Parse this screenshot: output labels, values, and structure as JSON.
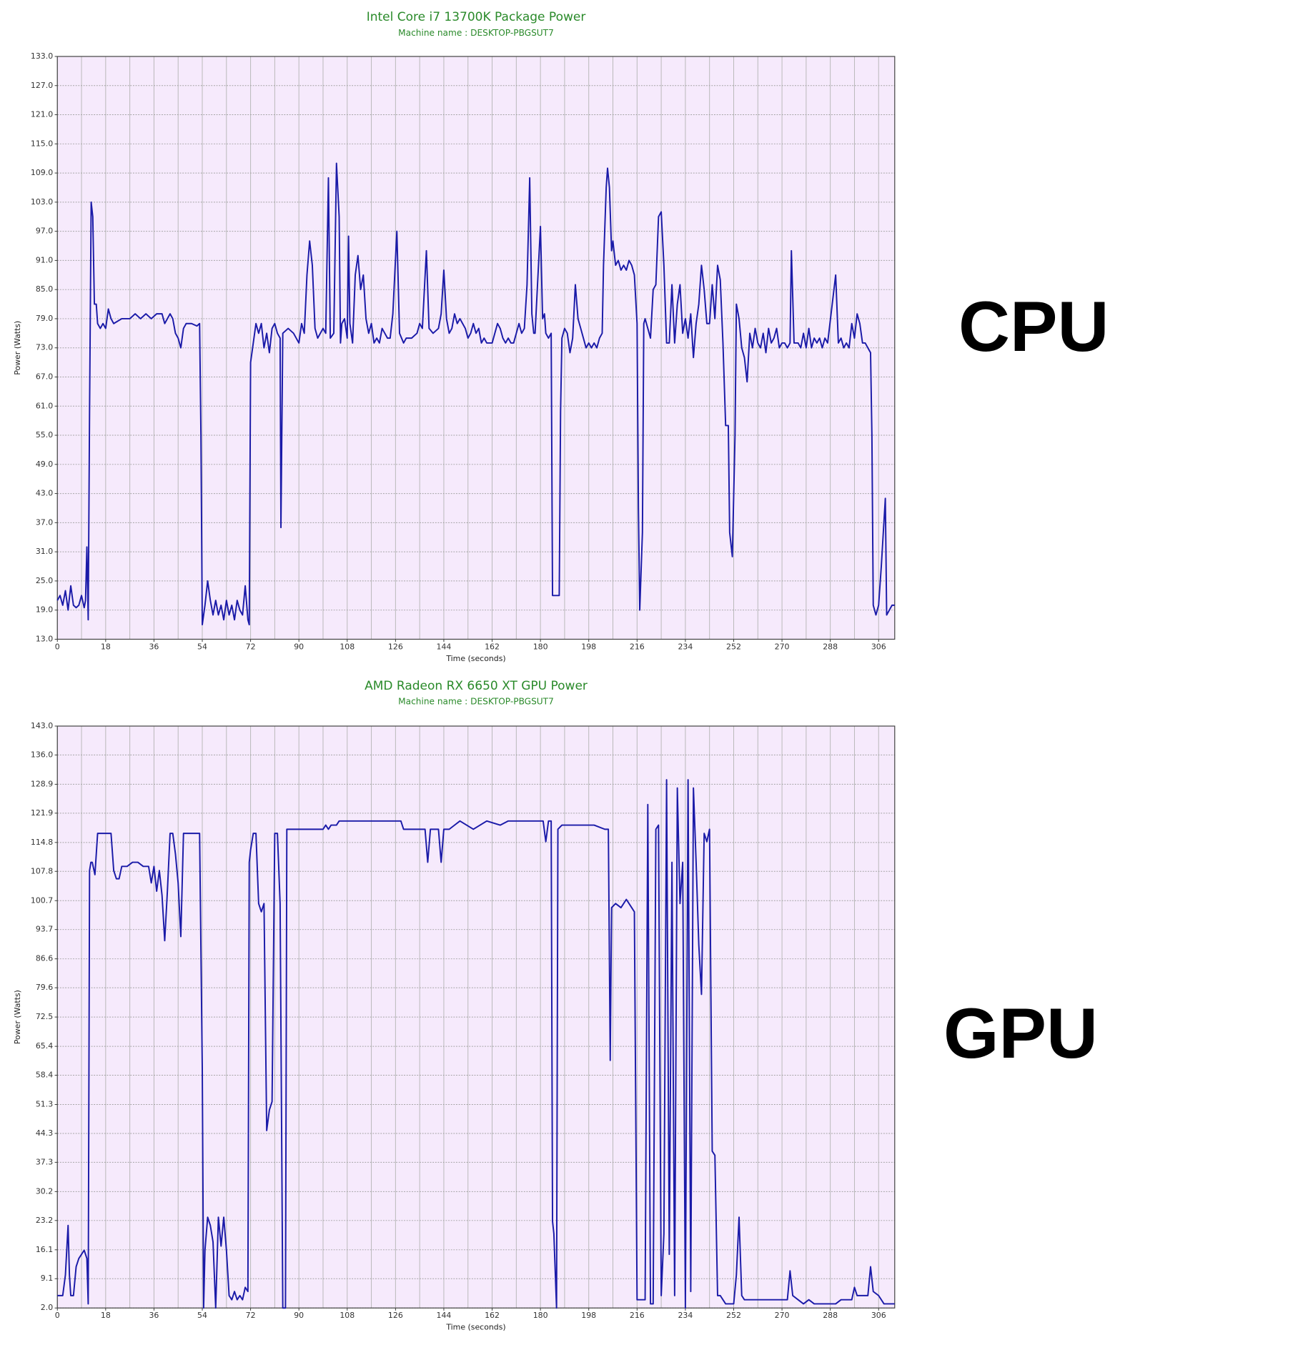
{
  "chart_data": [
    {
      "type": "line",
      "title": "Intel Core i7 13700K Package Power",
      "subtitle": "Machine name : DESKTOP-PBGSUT7",
      "x_label": "Time (seconds)",
      "y_label": "Power (Watts)",
      "annotation": "CPU",
      "color": "#1a1aa8",
      "grid": true,
      "xlim": [
        0,
        312
      ],
      "xticks": [
        0,
        18,
        36,
        54,
        72,
        90,
        108,
        126,
        144,
        162,
        180,
        198,
        216,
        234,
        252,
        270,
        288,
        306
      ],
      "ylim": [
        13,
        133
      ],
      "yticks": [
        {
          "value": 13,
          "label": "13.0"
        },
        {
          "value": 19,
          "label": "19.0"
        },
        {
          "value": 25,
          "label": "25.0"
        },
        {
          "value": 31,
          "label": "31.0"
        },
        {
          "value": 37,
          "label": "37.0"
        },
        {
          "value": 43,
          "label": "43.0"
        },
        {
          "value": 49,
          "label": "49.0"
        },
        {
          "value": 55,
          "label": "55.0"
        },
        {
          "value": 61,
          "label": "61.0"
        },
        {
          "value": 67,
          "label": "67.0"
        },
        {
          "value": 73,
          "label": "73.0"
        },
        {
          "value": 79,
          "label": "79.0"
        },
        {
          "value": 85,
          "label": "85.0"
        },
        {
          "value": 91,
          "label": "91.0"
        },
        {
          "value": 97,
          "label": "97.0"
        },
        {
          "value": 103,
          "label": "103.0"
        },
        {
          "value": 109,
          "label": "109.0"
        },
        {
          "value": 115,
          "label": "115.0"
        },
        {
          "value": 121,
          "label": "121.0"
        },
        {
          "value": 127,
          "label": "127.0"
        },
        {
          "value": 133,
          "label": "133.0"
        }
      ],
      "x": [
        0,
        1,
        2,
        3,
        4,
        5,
        6,
        7,
        8,
        9,
        10,
        10.5,
        11,
        11.5,
        12,
        12.6,
        13.2,
        13.8,
        14.5,
        15,
        16,
        17,
        18,
        19,
        20,
        21,
        24,
        27,
        29,
        31,
        33,
        35,
        37,
        39,
        40,
        42,
        43,
        44,
        45,
        46,
        47,
        48,
        50,
        52,
        53,
        53.5,
        54,
        55,
        56,
        57,
        58,
        59,
        60,
        61,
        62,
        63,
        64,
        65,
        66,
        67,
        68,
        69,
        70,
        71,
        71.5,
        72,
        73,
        74,
        75,
        76,
        77,
        78,
        79,
        80,
        81,
        82,
        83,
        83.3,
        84,
        86,
        88,
        90,
        91,
        92,
        93,
        94,
        95,
        96,
        97,
        98,
        99,
        100,
        101,
        101.7,
        103,
        104,
        105,
        105.5,
        106,
        107,
        108,
        108.5,
        109,
        110,
        111,
        112,
        113,
        114,
        115,
        116,
        117,
        118,
        119,
        120,
        121,
        122,
        123,
        124,
        125,
        126.5,
        127.5,
        129,
        130,
        132,
        134,
        135,
        136,
        137.5,
        138.5,
        140,
        142,
        143,
        144,
        145,
        146,
        147,
        148,
        149,
        150,
        151,
        152,
        153,
        154,
        155,
        156,
        157,
        158,
        159,
        160,
        162,
        163,
        164,
        165,
        166,
        167,
        168,
        169,
        170,
        171,
        172,
        173,
        174,
        175,
        176,
        176.8,
        177.5,
        178,
        180,
        180.8,
        181.5,
        182,
        183,
        184,
        184.5,
        186,
        187,
        187.5,
        188,
        189,
        190,
        191,
        192,
        193,
        194,
        195,
        196,
        197,
        198,
        199,
        200,
        201,
        202,
        203,
        203.5,
        204.5,
        205,
        205.7,
        206.5,
        207,
        208,
        209,
        210,
        211,
        212,
        213,
        214,
        215,
        216,
        216.5,
        217,
        218,
        218.5,
        219,
        220,
        221,
        222,
        223,
        224,
        225,
        226,
        227,
        228,
        229,
        230,
        231,
        232,
        233,
        234,
        235,
        236,
        237,
        238,
        239,
        240,
        241,
        242,
        243,
        244,
        245,
        246,
        247,
        248,
        249,
        250,
        250.5,
        251.5,
        252.5,
        253,
        254,
        255,
        256,
        257,
        258,
        259,
        260,
        261,
        262,
        263,
        264,
        265,
        266,
        267,
        268,
        269,
        270,
        271,
        272,
        273,
        273.5,
        274.5,
        276,
        277,
        278,
        279,
        280,
        281,
        282,
        283,
        284,
        285,
        286,
        287,
        290,
        291,
        292,
        293,
        294,
        295,
        296,
        297,
        298,
        299,
        300,
        301,
        302,
        303,
        303.5,
        304,
        305,
        306,
        307,
        308.5,
        309,
        310,
        311,
        312
      ],
      "values": [
        21,
        22,
        20,
        23,
        19,
        24,
        20,
        19.5,
        20,
        22,
        19.5,
        21,
        32,
        17,
        60,
        103,
        100,
        82,
        82,
        78,
        77,
        78,
        77,
        81,
        79,
        78,
        79,
        79,
        80,
        79,
        80,
        79,
        80,
        80,
        78,
        80,
        79,
        76,
        75,
        73,
        77,
        78,
        78,
        77.5,
        78,
        55,
        16,
        20,
        25,
        21,
        18,
        21,
        18,
        20,
        17,
        21,
        18,
        20,
        17,
        21,
        19,
        18,
        24,
        17,
        16,
        70,
        74,
        78,
        76,
        78,
        73,
        76,
        72,
        77,
        78,
        76,
        75,
        36,
        76,
        77,
        76,
        74,
        78,
        76,
        88,
        95,
        90,
        77,
        75,
        76,
        77,
        76,
        108,
        75,
        76,
        111,
        100,
        74,
        78,
        79,
        75,
        96,
        78,
        74,
        88,
        92,
        85,
        88,
        79,
        76,
        78,
        74,
        75,
        74,
        77,
        76,
        75,
        75,
        80,
        97,
        76,
        74,
        75,
        75,
        76,
        78,
        77,
        93,
        77,
        76,
        77,
        80,
        89,
        79,
        76,
        77,
        80,
        78,
        79,
        78,
        77,
        75,
        76,
        78,
        76,
        77,
        74,
        75,
        74,
        74,
        76,
        78,
        77,
        75,
        74,
        75,
        74,
        74,
        76,
        78,
        76,
        77,
        86,
        108,
        80,
        76,
        76,
        98,
        79,
        80,
        76,
        75,
        76,
        22,
        22,
        22,
        60,
        75,
        77,
        76,
        72,
        75,
        86,
        79,
        77,
        75,
        73,
        74,
        73,
        74,
        73,
        75,
        76,
        90,
        106,
        110,
        106,
        93,
        95,
        90,
        91,
        89,
        90,
        89,
        91,
        90,
        88,
        78,
        40,
        19,
        35,
        78,
        79,
        77,
        75,
        85,
        86,
        100,
        101,
        90,
        74,
        74,
        86,
        74,
        82,
        86,
        76,
        79,
        75,
        80,
        71,
        78,
        82,
        90,
        85,
        78,
        78,
        86,
        79,
        90,
        87,
        74,
        57,
        57,
        35,
        30,
        55,
        82,
        79,
        73,
        71,
        66,
        76,
        73,
        77,
        74,
        73,
        76,
        72,
        77,
        74,
        75,
        77,
        73,
        74,
        74,
        73,
        74,
        93,
        74,
        74,
        73,
        76,
        73,
        77,
        73,
        75,
        74,
        75,
        73,
        75,
        74,
        88,
        74,
        75,
        73,
        74,
        73,
        78,
        75,
        80,
        78,
        74,
        74,
        73,
        72,
        55,
        20,
        18,
        20,
        28,
        42,
        18,
        19,
        20,
        20
      ]
    },
    {
      "type": "line",
      "title": "AMD Radeon RX 6650 XT GPU Power",
      "subtitle": "Machine name : DESKTOP-PBGSUT7",
      "x_label": "Time (seconds)",
      "y_label": "Power (Watts)",
      "annotation": "GPU",
      "color": "#1a1aa8",
      "grid": true,
      "xlim": [
        0,
        312
      ],
      "xticks": [
        0,
        18,
        36,
        54,
        72,
        90,
        108,
        126,
        144,
        162,
        180,
        198,
        216,
        234,
        252,
        270,
        288,
        306
      ],
      "ylim": [
        2,
        143
      ],
      "yticks": [
        {
          "value": 2,
          "label": "2.0"
        },
        9.1,
        16.1,
        23.2,
        30.2,
        37.3,
        44.3,
        51.3,
        58.4,
        65.4,
        72.5,
        79.6,
        86.6,
        93.7,
        100.7,
        107.8,
        114.8,
        121.9,
        128.9,
        {
          "value": 136,
          "label": "136.0"
        },
        {
          "value": 143,
          "label": "143.0"
        }
      ],
      "x": [
        0,
        1,
        2,
        3,
        4,
        4.5,
        5,
        6,
        7,
        8,
        9,
        10,
        11,
        11.5,
        12,
        12.5,
        13,
        14,
        15,
        17,
        19,
        20,
        21,
        22,
        23,
        24,
        26,
        28,
        30,
        32,
        34,
        35,
        36,
        37,
        38,
        39,
        40,
        41,
        42,
        43,
        44,
        45,
        46,
        47,
        49,
        51,
        53,
        54,
        54.5,
        55,
        56,
        57,
        58,
        59,
        60,
        61,
        62,
        63,
        64,
        65,
        66,
        67,
        68,
        69,
        70,
        71,
        71.5,
        72,
        73,
        74,
        75,
        76,
        77,
        78,
        79,
        80,
        81,
        82,
        83,
        84,
        85,
        85.5,
        87,
        99,
        100,
        101,
        102,
        104,
        105,
        110,
        120,
        128,
        129,
        134,
        137,
        138,
        139,
        140,
        142,
        143,
        144,
        146,
        150,
        155,
        160,
        165,
        168,
        175,
        181,
        182,
        183,
        184,
        184.5,
        185,
        186,
        186.5,
        188,
        200,
        204,
        205.3,
        206,
        206.5,
        208,
        210,
        212,
        214,
        215,
        216,
        217,
        218,
        219,
        220,
        221,
        222,
        223,
        224,
        225,
        226,
        227,
        228,
        229,
        230,
        231,
        232,
        233,
        234,
        235,
        236,
        237,
        238,
        239,
        240,
        241,
        242,
        243,
        244,
        245,
        246,
        247,
        248,
        249,
        250,
        251,
        252,
        253,
        254,
        255,
        256,
        258,
        260,
        262,
        265,
        268,
        270,
        272,
        273,
        274,
        276,
        278,
        280,
        282,
        284,
        286,
        288,
        290,
        292,
        294,
        296,
        297,
        298,
        300,
        302,
        303,
        304,
        306,
        308,
        310,
        312
      ],
      "values": [
        5,
        5,
        5,
        10,
        22,
        10,
        5,
        5,
        12,
        14,
        15,
        16,
        14,
        3,
        108,
        110,
        110,
        107,
        117,
        117,
        117,
        117,
        108,
        106,
        106,
        109,
        109,
        110,
        110,
        109,
        109,
        105,
        109,
        103,
        108,
        102,
        91,
        103,
        117,
        117,
        112,
        105,
        92,
        117,
        117,
        117,
        117,
        60,
        2,
        16,
        24,
        22,
        18,
        2,
        24,
        17,
        24,
        16,
        5,
        4,
        6,
        4,
        5,
        4,
        7,
        6,
        110,
        113,
        117,
        117,
        100,
        98,
        100,
        45,
        50,
        52,
        117,
        117,
        100,
        2,
        2,
        118,
        118,
        118,
        119,
        118,
        119,
        119,
        120,
        120,
        120,
        120,
        118,
        118,
        118,
        110,
        118,
        118,
        118,
        110,
        118,
        118,
        120,
        118,
        120,
        119,
        120,
        120,
        120,
        115,
        120,
        120,
        23,
        20,
        2,
        118,
        119,
        119,
        118,
        118,
        62,
        99,
        100,
        99,
        101,
        99,
        98,
        4,
        4,
        4,
        4,
        124,
        3,
        3,
        118,
        119,
        5,
        20,
        130,
        15,
        110,
        5,
        128,
        100,
        110,
        2,
        130,
        6,
        128,
        110,
        90,
        78,
        117,
        115,
        118,
        40,
        39,
        5,
        5,
        4,
        3,
        3,
        3,
        3,
        10,
        24,
        5,
        4,
        4,
        4,
        4,
        4,
        4,
        4,
        4,
        11,
        5,
        4,
        3,
        4,
        3,
        3,
        3,
        3,
        3,
        4,
        4,
        4,
        7,
        5,
        5,
        5,
        12,
        6,
        5,
        3,
        3,
        3
      ]
    }
  ]
}
